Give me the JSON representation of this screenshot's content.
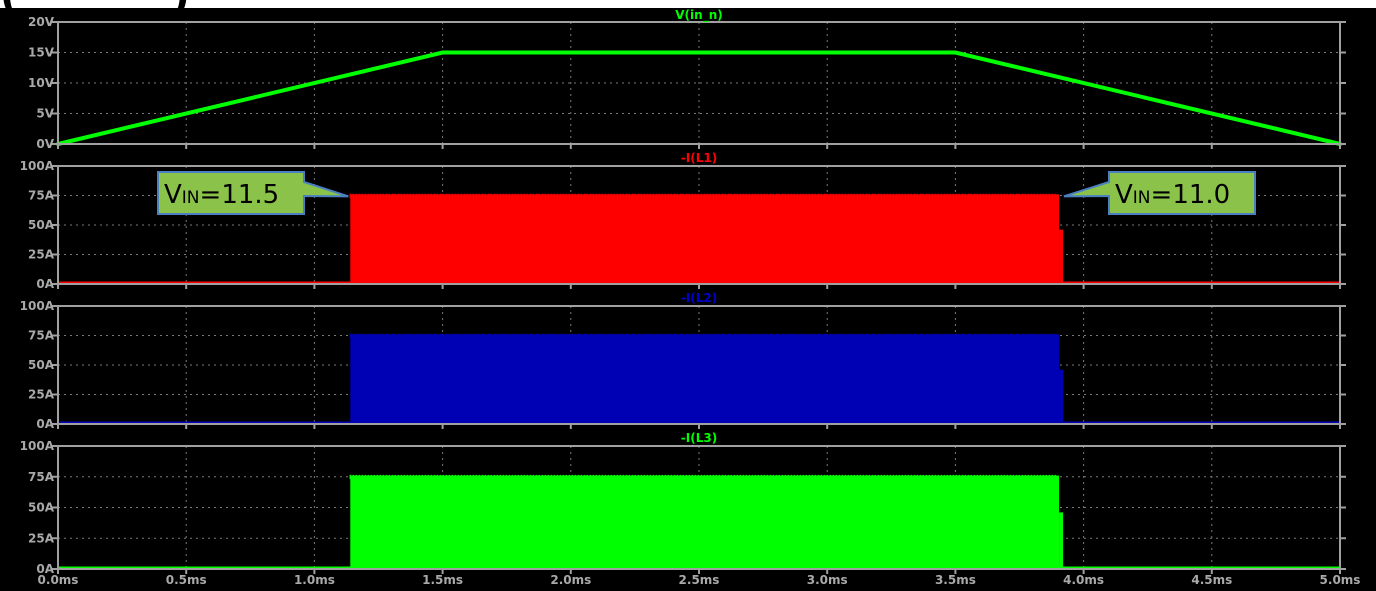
{
  "header_fragment": "(           )",
  "colors": {
    "background": "#000000",
    "frame": "#a0a0a0",
    "grid": "#7a7a7a",
    "tick_text": "#a9a9a9",
    "callout_fill": "#8bc34a",
    "callout_border": "#4a7fc1"
  },
  "chart_data": [
    {
      "type": "line",
      "title": "V(in_n)",
      "title_color": "#00ff00",
      "color": "#00ff00",
      "x": [
        0.0,
        1.5,
        3.5,
        5.0
      ],
      "y": [
        0,
        15,
        15,
        0
      ],
      "ylim": [
        0,
        20
      ],
      "yticks": [
        0,
        5,
        10,
        15,
        20
      ],
      "ytick_labels": [
        "0V",
        "5V",
        "10V",
        "15V",
        "20V"
      ],
      "xlim": [
        0,
        5
      ],
      "grid": true
    },
    {
      "type": "area",
      "title": "-I(L1)",
      "title_color": "#ff0000",
      "color": "#ff0000",
      "on_start": 1.14,
      "on_end": 3.92,
      "band_low": 0,
      "band_high": 76,
      "ylim": [
        0,
        100
      ],
      "yticks": [
        0,
        25,
        50,
        75,
        100
      ],
      "ytick_labels": [
        "0A",
        "25A",
        "50A",
        "75A",
        "100A"
      ],
      "xlim": [
        0,
        5
      ],
      "grid": true,
      "annotations": [
        {
          "text_main": "V",
          "text_sub": "IN",
          "text_rest": "=11.5",
          "x": 1.14,
          "side": "left"
        },
        {
          "text_main": "V",
          "text_sub": "IN",
          "text_rest": "=11.0",
          "x": 3.9,
          "side": "right"
        }
      ]
    },
    {
      "type": "area",
      "title": "-I(L2)",
      "title_color": "#0000cc",
      "color": "#0000b4",
      "on_start": 1.14,
      "on_end": 3.92,
      "band_low": 0,
      "band_high": 76,
      "ylim": [
        0,
        100
      ],
      "yticks": [
        0,
        25,
        50,
        75,
        100
      ],
      "ytick_labels": [
        "0A",
        "25A",
        "50A",
        "75A",
        "100A"
      ],
      "xlim": [
        0,
        5
      ],
      "grid": true
    },
    {
      "type": "area",
      "title": "-I(L3)",
      "title_color": "#00ff00",
      "color": "#00ff00",
      "on_start": 1.14,
      "on_end": 3.92,
      "band_low": 0,
      "band_high": 76,
      "ylim": [
        0,
        100
      ],
      "yticks": [
        0,
        25,
        50,
        75,
        100
      ],
      "ytick_labels": [
        "0A",
        "25A",
        "50A",
        "75A",
        "100A"
      ],
      "xlim": [
        0,
        5
      ],
      "grid": true
    }
  ],
  "x_axis": {
    "ticks": [
      0,
      0.5,
      1.0,
      1.5,
      2.0,
      2.5,
      3.0,
      3.5,
      4.0,
      4.5,
      5.0
    ],
    "tick_labels": [
      "0.0ms",
      "0.5ms",
      "1.0ms",
      "1.5ms",
      "2.0ms",
      "2.5ms",
      "3.0ms",
      "3.5ms",
      "4.0ms",
      "4.5ms",
      "5.0ms"
    ]
  }
}
